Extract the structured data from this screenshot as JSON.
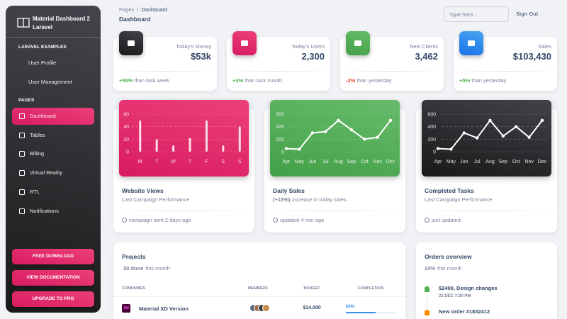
{
  "sidebar": {
    "brand": "Material Dashboard 2 Laravel",
    "sections": [
      {
        "title": "LARAVEL EXAMPLES",
        "items": [
          "User Profile",
          "User Management"
        ]
      },
      {
        "title": "PAGES",
        "items": [
          "Dashboard",
          "Tables",
          "Billing",
          "Virtual Reality",
          "RTL",
          "Notifications"
        ]
      }
    ],
    "buttons": [
      "FREE DOWNLOAD",
      "VIEW DOCUMENTATION",
      "UPGRADE TO PRO"
    ]
  },
  "navbar": {
    "breadcrumb": [
      "Pages",
      "Dashboard"
    ],
    "separator": "/",
    "title": "Dashboard",
    "search_placeholder": "Type here...",
    "sign_out": "Sign Out"
  },
  "stats": [
    {
      "label": "Today's Money",
      "value": "$53k",
      "change": "+55%",
      "note": "than lask week"
    },
    {
      "label": "Today's Users",
      "value": "2,300",
      "change": "+3%",
      "note": "than lask month"
    },
    {
      "label": "New Clients",
      "value": "3,462",
      "change": "-2%",
      "note": "than yesterday"
    },
    {
      "label": "Sales",
      "value": "$103,430",
      "change": "+5%",
      "note": "than yesterday"
    }
  ],
  "charts": [
    {
      "type": "bar",
      "title": "Website Views",
      "subtitle": "Last Campaign Performance",
      "footer": "campaign sent 2 days ago",
      "categories": [
        "M",
        "T",
        "W",
        "T",
        "F",
        "S",
        "S"
      ],
      "values": [
        50,
        20,
        10,
        22,
        50,
        10,
        40
      ],
      "ylim": [
        0,
        60
      ],
      "yticks": [
        0,
        20,
        40,
        60
      ]
    },
    {
      "type": "line",
      "title": "Daily Sales",
      "subtitle_strong": "(+15%)",
      "subtitle": "increase in today sales.",
      "footer": "updated 4 min ago",
      "categories": [
        "Apr",
        "May",
        "Jun",
        "Jul",
        "Aug",
        "Sep",
        "Oct",
        "Nov",
        "Dec"
      ],
      "values": [
        50,
        40,
        300,
        320,
        500,
        350,
        200,
        230,
        500
      ],
      "ylim": [
        0,
        600
      ],
      "yticks": [
        0,
        200,
        400,
        600
      ]
    },
    {
      "type": "line",
      "title": "Completed Tasks",
      "subtitle": "Last Campaign Performance",
      "footer": "just updated",
      "categories": [
        "Apr",
        "May",
        "Jun",
        "Jul",
        "Aug",
        "Sep",
        "Oct",
        "Nov",
        "Dec"
      ],
      "values": [
        50,
        40,
        300,
        220,
        500,
        250,
        400,
        230,
        500
      ],
      "ylim": [
        0,
        600
      ],
      "yticks": [
        0,
        200,
        400,
        600
      ]
    }
  ],
  "projects": {
    "title": "Projects",
    "summary_strong": "30 done",
    "summary": "this month",
    "columns": [
      "COMPANIES",
      "MEMBERS",
      "BUDGET",
      "COMPLETION"
    ],
    "rows": [
      {
        "icon": "Xd",
        "name": "Material XD Version",
        "budget": "$14,000",
        "completion": 60,
        "completion_label": "60%"
      }
    ]
  },
  "orders": {
    "title": "Orders overview",
    "summary_strong": "24%",
    "summary": "this month",
    "items": [
      {
        "title": "$2400, Design changes",
        "date": "22 DEC 7:20 PM"
      },
      {
        "title": "New order #1832412"
      }
    ]
  }
}
